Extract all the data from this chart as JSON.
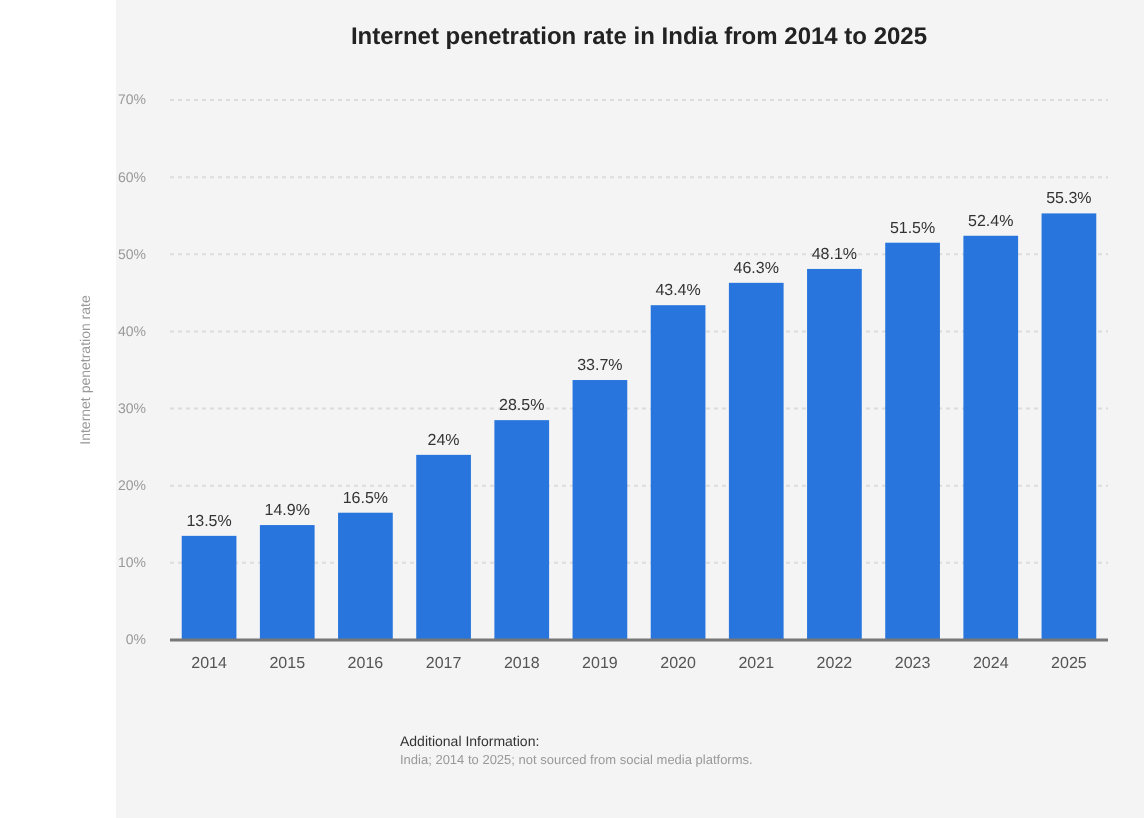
{
  "chart_data": {
    "type": "bar",
    "title": "Internet penetration rate in India from 2014 to 2025",
    "ylabel": "Internet penetration rate",
    "categories": [
      "2014",
      "2015",
      "2016",
      "2017",
      "2018",
      "2019",
      "2020",
      "2021",
      "2022",
      "2023",
      "2024",
      "2025"
    ],
    "values": [
      13.5,
      14.9,
      16.5,
      24,
      28.5,
      33.7,
      43.4,
      46.3,
      48.1,
      51.5,
      52.4,
      55.3
    ],
    "value_labels": [
      "13.5%",
      "14.9%",
      "16.5%",
      "24%",
      "28.5%",
      "33.7%",
      "43.4%",
      "46.3%",
      "48.1%",
      "51.5%",
      "52.4%",
      "55.3%"
    ],
    "color": "#2876dd",
    "ylim": [
      0,
      70
    ],
    "yticks": [
      {
        "value": 0,
        "label": "0%"
      },
      {
        "value": 10,
        "label": "10%"
      },
      {
        "value": 20,
        "label": "20%"
      },
      {
        "value": 30,
        "label": "30%"
      },
      {
        "value": 40,
        "label": "40%"
      },
      {
        "value": 50,
        "label": "50%"
      },
      {
        "value": 60,
        "label": "60%"
      },
      {
        "value": 70,
        "label": "70%"
      }
    ],
    "grid": "y",
    "annotations": [
      "Additional Information:",
      "India; 2014 to 2025; not sourced from social media platforms."
    ]
  }
}
